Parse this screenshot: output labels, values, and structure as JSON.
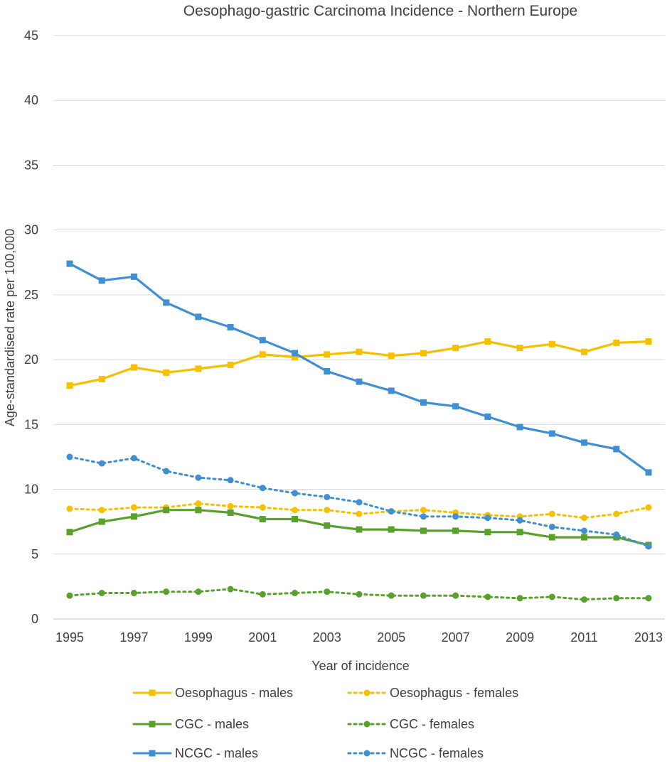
{
  "chart_data": {
    "type": "line",
    "title": "Oesophago-gastric Carcinoma Incidence - Northern Europe",
    "xlabel": "Year of incidence",
    "ylabel": "Age-standardised rate per 100,000",
    "ylim": [
      0,
      45
    ],
    "yticks": [
      0,
      5,
      10,
      15,
      20,
      25,
      30,
      35,
      40,
      45
    ],
    "x": [
      1995,
      1996,
      1997,
      1998,
      1999,
      2000,
      2001,
      2002,
      2003,
      2004,
      2005,
      2006,
      2007,
      2008,
      2009,
      2010,
      2011,
      2012,
      2013
    ],
    "xtick_labels": [
      "1995",
      "1997",
      "1999",
      "2001",
      "2003",
      "2005",
      "2007",
      "2009",
      "2011",
      "2013"
    ],
    "grid": true,
    "legend_position": "bottom",
    "series": [
      {
        "name": "Oesophagus - males",
        "color": "#F5C000",
        "style": "solid",
        "marker": "square",
        "values": [
          18.0,
          18.5,
          19.4,
          19.0,
          19.3,
          19.6,
          20.4,
          20.2,
          20.4,
          20.6,
          20.3,
          20.5,
          20.9,
          21.4,
          20.9,
          21.2,
          20.6,
          21.3,
          21.4
        ]
      },
      {
        "name": "Oesophagus - females",
        "color": "#F5C000",
        "style": "dotted",
        "marker": "circle",
        "values": [
          8.5,
          8.4,
          8.6,
          8.6,
          8.9,
          8.7,
          8.6,
          8.4,
          8.4,
          8.1,
          8.3,
          8.4,
          8.2,
          8.0,
          7.9,
          8.1,
          7.8,
          8.1,
          8.6
        ]
      },
      {
        "name": "CGC - males",
        "color": "#5AA02C",
        "style": "solid",
        "marker": "square",
        "values": [
          6.7,
          7.5,
          7.9,
          8.4,
          8.4,
          8.2,
          7.7,
          7.7,
          7.2,
          6.9,
          6.9,
          6.8,
          6.8,
          6.7,
          6.7,
          6.3,
          6.3,
          6.3,
          5.7
        ]
      },
      {
        "name": "CGC - females",
        "color": "#5AA02C",
        "style": "dotted",
        "marker": "circle",
        "values": [
          1.8,
          2.0,
          2.0,
          2.1,
          2.1,
          2.3,
          1.9,
          2.0,
          2.1,
          1.9,
          1.8,
          1.8,
          1.8,
          1.7,
          1.6,
          1.7,
          1.5,
          1.6,
          1.6
        ]
      },
      {
        "name": "NCGC - males",
        "color": "#3F8FD2",
        "style": "solid",
        "marker": "square",
        "values": [
          27.4,
          26.1,
          26.4,
          24.4,
          23.3,
          22.5,
          21.5,
          20.5,
          19.1,
          18.3,
          17.6,
          16.7,
          16.4,
          15.6,
          14.8,
          14.3,
          13.6,
          13.1,
          11.3
        ]
      },
      {
        "name": "NCGC - females",
        "color": "#3F8FD2",
        "style": "dotted",
        "marker": "circle",
        "values": [
          12.5,
          12.0,
          12.4,
          11.4,
          10.9,
          10.7,
          10.1,
          9.7,
          9.4,
          9.0,
          8.3,
          7.9,
          7.9,
          7.8,
          7.6,
          7.1,
          6.8,
          6.5,
          5.6
        ]
      }
    ]
  }
}
